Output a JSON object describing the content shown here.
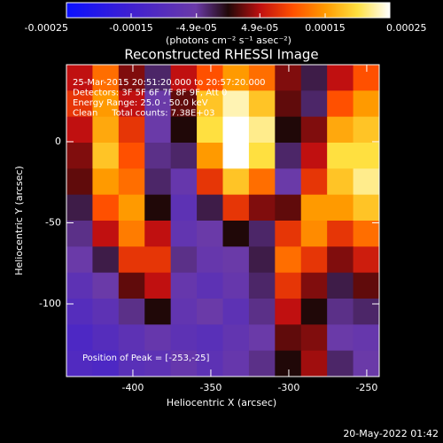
{
  "chart_data": {
    "type": "heatmap",
    "title": "Reconstructed RHESSI Image",
    "annotations": [
      "25-Mar-2015 20:51:20.000 to 20:57:20.000",
      "Detectors: 3F 5F 6F 7F 8F 9F, Att 0",
      "Energy Range: 25.0 - 50.0 keV",
      "Clean     Total counts: 7.38E+03"
    ],
    "peak_label": "Position of Peak = [-253,-25]",
    "x_label": "Heliocentric X (arcsec)",
    "y_label": "Heliocentric Y (arcsec)",
    "timestamp": "20-May-2022 01:42",
    "colorbar_label": "(photons cm⁻² s⁻¹ asec⁻²)",
    "clim": [
      -0.00025,
      0.00025
    ],
    "cticks": [
      -0.00025,
      -0.00015,
      {
        "value": -4.9e-05,
        "label": "-4.9e-05"
      },
      {
        "value": 4.9e-05,
        "label": "4.9e-05"
      },
      0.00015,
      0.00025
    ],
    "xlim": [
      -442.6,
      -242
    ],
    "ylim": [
      -144.8,
      47.5
    ],
    "xticks": [
      -400,
      -350,
      -300,
      -250
    ],
    "yticks": [
      -100,
      -50,
      0
    ],
    "z": [
      [
        5e-05,
        0.00012,
        3e-05,
        -3e-05,
        5e-05,
        0.0001,
        0.00015,
        0.00012,
        3e-05,
        -2e-05,
        5e-05,
        0.0001
      ],
      [
        8e-05,
        0.00015,
        5e-05,
        -5e-05,
        2e-05,
        0.00018,
        0.00023,
        0.00018,
        2e-05,
        -3e-05,
        0.0001,
        0.00015
      ],
      [
        5e-05,
        0.00016,
        8e-05,
        -5e-05,
        0,
        0.0002,
        0.00025,
        0.00022,
        0,
        3e-05,
        0.00016,
        0.00018
      ],
      [
        3e-05,
        0.00018,
        0.0001,
        -4e-05,
        -3e-05,
        0.00015,
        0.00025,
        0.0002,
        -3e-05,
        5e-05,
        0.0002,
        0.0002
      ],
      [
        2e-05,
        0.00015,
        0.00012,
        -3e-05,
        -6e-05,
        8e-05,
        0.00018,
        0.00012,
        -5e-05,
        8e-05,
        0.00018,
        0.00022
      ],
      [
        -2e-05,
        0.0001,
        0.00015,
        0,
        -8e-05,
        -2e-05,
        8e-05,
        3e-05,
        2e-05,
        0.00015,
        0.00015,
        0.00018
      ],
      [
        -4e-05,
        5e-05,
        0.00013,
        5e-05,
        -7e-05,
        -5e-05,
        0,
        -3e-05,
        8e-05,
        0.00014,
        8e-05,
        0.00012
      ],
      [
        -5e-05,
        -2e-05,
        8e-05,
        8e-05,
        -4e-05,
        -6e-05,
        -5e-05,
        -2e-05,
        0.00012,
        8e-05,
        3e-05,
        6e-05
      ],
      [
        -8e-05,
        -5e-05,
        2e-05,
        5e-05,
        -6e-05,
        -8e-05,
        -6e-05,
        -3e-05,
        8e-05,
        3e-05,
        -2e-05,
        2e-05
      ],
      [
        -0.0001,
        -8e-05,
        -4e-05,
        0,
        -7e-05,
        -5e-05,
        -8e-05,
        -4e-05,
        5e-05,
        0,
        -4e-05,
        -3e-05
      ],
      [
        -0.00012,
        -0.0001,
        -8e-05,
        -6e-05,
        -8e-05,
        -9e-05,
        -7e-05,
        -5e-05,
        2e-05,
        3e-05,
        -5e-05,
        -6e-05
      ],
      [
        -0.00011,
        -0.00012,
        -9e-05,
        -8e-05,
        -6e-05,
        -8e-05,
        -6e-05,
        -4e-05,
        0,
        4e-05,
        -3e-05,
        -5e-05
      ]
    ]
  }
}
